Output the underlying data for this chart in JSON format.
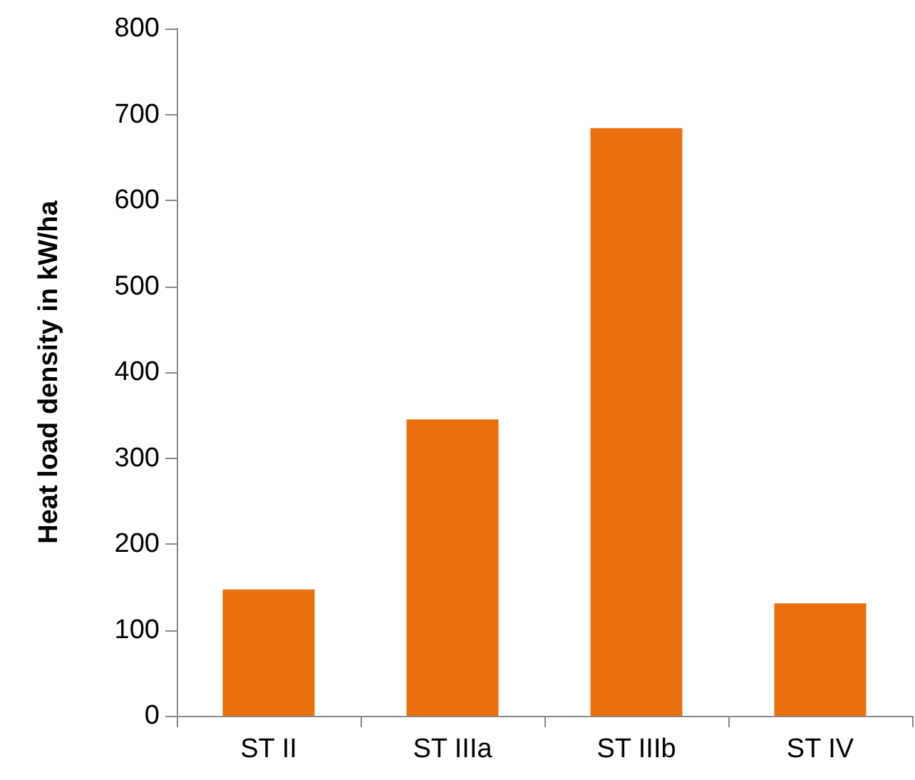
{
  "chart_data": {
    "type": "bar",
    "ylabel": "Heat load density in kW/ha",
    "categories": [
      "ST II",
      "ST IIIa",
      "ST IIIb",
      "ST IV"
    ],
    "values": [
      147,
      345,
      684,
      131
    ],
    "color": "#e8700e",
    "ylim": [
      0,
      800
    ],
    "yticks": [
      0,
      100,
      200,
      300,
      400,
      500,
      600,
      700,
      800
    ],
    "grid": false
  }
}
